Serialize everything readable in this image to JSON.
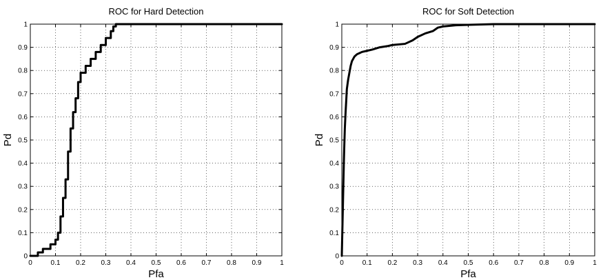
{
  "chart_data": [
    {
      "type": "line",
      "title": "ROC for Hard Detection",
      "xlabel": "Pfa",
      "ylabel": "Pd",
      "xlim": [
        0,
        1
      ],
      "ylim": [
        0,
        1
      ],
      "xticks": [
        "0",
        "0.1",
        "0.2",
        "0.3",
        "0.4",
        "0.5",
        "0.6",
        "0.7",
        "0.8",
        "0.9",
        "1"
      ],
      "yticks": [
        "0",
        "0.1",
        "0.2",
        "0.3",
        "0.4",
        "0.5",
        "0.6",
        "0.7",
        "0.8",
        "0.9",
        "1"
      ],
      "grid": true,
      "series": [
        {
          "color": "#000000",
          "x": [
            0,
            0.03,
            0.03,
            0.05,
            0.05,
            0.08,
            0.08,
            0.1,
            0.1,
            0.11,
            0.11,
            0.12,
            0.12,
            0.13,
            0.13,
            0.14,
            0.14,
            0.15,
            0.15,
            0.16,
            0.16,
            0.17,
            0.17,
            0.18,
            0.18,
            0.19,
            0.19,
            0.2,
            0.2,
            0.22,
            0.22,
            0.24,
            0.24,
            0.26,
            0.26,
            0.28,
            0.28,
            0.3,
            0.3,
            0.32,
            0.32,
            0.33,
            0.33,
            0.34,
            0.34,
            0.36,
            0.5,
            1.0
          ],
          "y": [
            0,
            0,
            0.015,
            0.015,
            0.03,
            0.03,
            0.05,
            0.05,
            0.07,
            0.07,
            0.1,
            0.1,
            0.17,
            0.17,
            0.25,
            0.25,
            0.33,
            0.33,
            0.45,
            0.45,
            0.55,
            0.55,
            0.62,
            0.62,
            0.68,
            0.68,
            0.75,
            0.75,
            0.79,
            0.79,
            0.82,
            0.82,
            0.85,
            0.85,
            0.88,
            0.88,
            0.91,
            0.91,
            0.94,
            0.94,
            0.97,
            0.97,
            0.99,
            0.99,
            1.0,
            1.0,
            1.0,
            1.0
          ]
        }
      ]
    },
    {
      "type": "line",
      "title": "ROC for Soft Detection",
      "xlabel": "Pfa",
      "ylabel": "Pd",
      "xlim": [
        0,
        1
      ],
      "ylim": [
        0,
        1
      ],
      "xticks": [
        "0",
        "0.1",
        "0.2",
        "0.3",
        "0.4",
        "0.5",
        "0.6",
        "0.7",
        "0.8",
        "0.9",
        "1"
      ],
      "yticks": [
        "0",
        "0.1",
        "0.2",
        "0.3",
        "0.4",
        "0.5",
        "0.6",
        "0.7",
        "0.8",
        "0.9",
        "1"
      ],
      "grid": true,
      "series": [
        {
          "color": "#000000",
          "x": [
            0,
            0.002,
            0.004,
            0.006,
            0.008,
            0.01,
            0.012,
            0.015,
            0.018,
            0.02,
            0.025,
            0.03,
            0.035,
            0.04,
            0.05,
            0.06,
            0.07,
            0.08,
            0.1,
            0.12,
            0.15,
            0.18,
            0.2,
            0.25,
            0.28,
            0.3,
            0.33,
            0.36,
            0.38,
            0.4,
            0.45,
            0.5,
            0.6,
            0.7,
            0.8,
            0.9,
            1.0
          ],
          "y": [
            0,
            0.1,
            0.2,
            0.3,
            0.4,
            0.48,
            0.55,
            0.62,
            0.68,
            0.72,
            0.76,
            0.79,
            0.82,
            0.84,
            0.86,
            0.87,
            0.875,
            0.88,
            0.885,
            0.89,
            0.9,
            0.905,
            0.91,
            0.915,
            0.93,
            0.945,
            0.96,
            0.97,
            0.985,
            0.99,
            0.995,
            0.997,
            1.0,
            1.0,
            1.0,
            1.0,
            1.0
          ]
        }
      ]
    }
  ]
}
